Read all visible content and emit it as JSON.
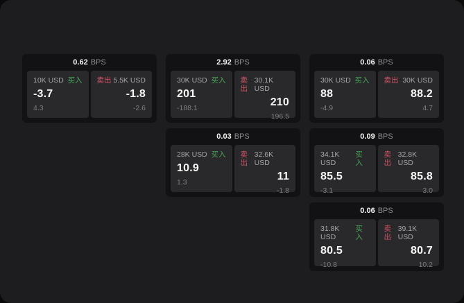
{
  "labels": {
    "bps_unit": "BPS",
    "buy": "买入",
    "sell": "卖出"
  },
  "colors": {
    "panel_background": "#1d1d1f",
    "card_background": "#121214",
    "tile_background": "#29292b",
    "buy_green": "#46a758",
    "sell_red": "#d25464",
    "primary_text": "#f5f5f5",
    "secondary_text": "#a6a6a8",
    "dim_text": "#7e7e80"
  },
  "cards": [
    {
      "bps": "0.62",
      "buy": {
        "amount": "10K USD",
        "price": "-3.7",
        "change": "4.3"
      },
      "sell": {
        "amount": "5.5K USD",
        "price": "-1.8",
        "change": "-2.6"
      }
    },
    {
      "bps": "2.92",
      "buy": {
        "amount": "30K USD",
        "price": "201",
        "change": "-188.1"
      },
      "sell": {
        "amount": "30.1K USD",
        "price": "210",
        "change": "196.5"
      }
    },
    {
      "bps": "0.06",
      "buy": {
        "amount": "30K USD",
        "price": "88",
        "change": "-4.9"
      },
      "sell": {
        "amount": "30K USD",
        "price": "88.2",
        "change": "4.7"
      }
    },
    {
      "bps": "0.03",
      "buy": {
        "amount": "28K USD",
        "price": "10.9",
        "change": "1.3"
      },
      "sell": {
        "amount": "32.6K USD",
        "price": "11",
        "change": "-1.8"
      }
    },
    {
      "bps": "0.09",
      "buy": {
        "amount": "34.1K USD",
        "price": "85.5",
        "change": "-3.1"
      },
      "sell": {
        "amount": "32.8K USD",
        "price": "85.8",
        "change": "3.0"
      }
    },
    {
      "bps": "0.06",
      "buy": {
        "amount": "31.8K USD",
        "price": "80.5",
        "change": "-10.8"
      },
      "sell": {
        "amount": "39.1K USD",
        "price": "80.7",
        "change": "10.2"
      }
    }
  ]
}
